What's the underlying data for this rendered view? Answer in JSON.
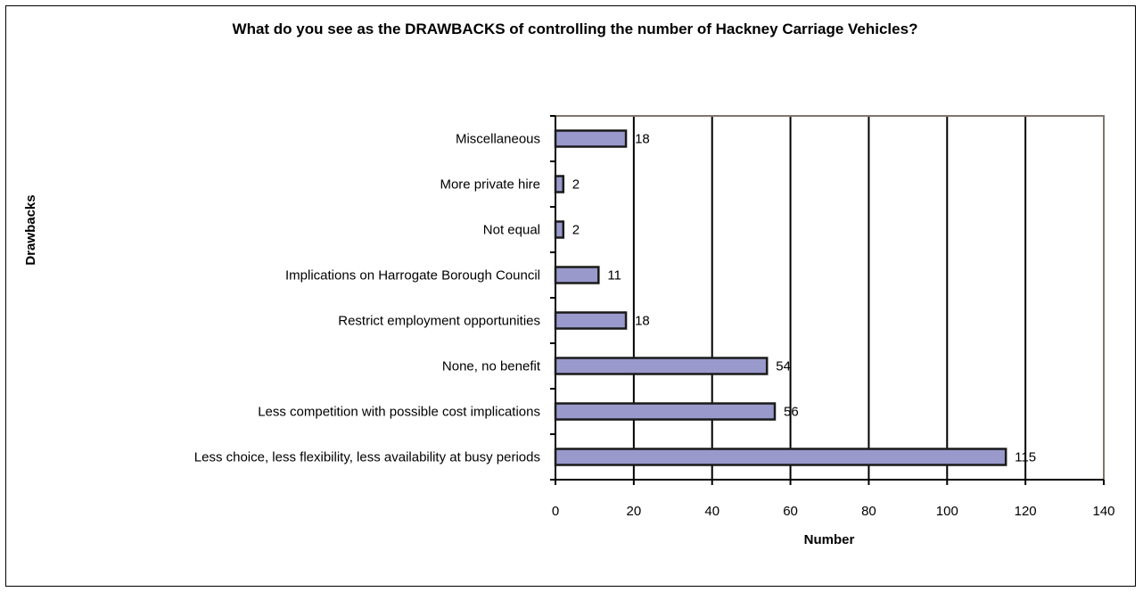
{
  "chart_data": {
    "type": "bar",
    "orientation": "horizontal",
    "title": "What do you see as the DRAWBACKS of controlling the number of Hackney Carriage Vehicles?",
    "xlabel": "Number",
    "ylabel": "Drawbacks",
    "xlim": [
      0,
      140
    ],
    "x_ticks": [
      "0",
      "20",
      "40",
      "60",
      "80",
      "100",
      "120",
      "140"
    ],
    "grid": true,
    "legend": "none",
    "categories": [
      "Miscellaneous",
      "More private hire",
      "Not equal",
      "Implications on Harrogate Borough Council",
      "Restrict employment opportunities",
      "None, no benefit",
      "Less competition with possible cost implications",
      "Less choice, less flexibility, less availability at busy periods"
    ],
    "values": [
      18,
      2,
      2,
      11,
      18,
      54,
      56,
      115
    ],
    "data_labels": [
      "18",
      "2",
      "2",
      "11",
      "18",
      "54",
      "56",
      "115"
    ],
    "colors": {
      "bar_fill": "#9999cc",
      "bar_stroke": "#1a1a1a",
      "plot_border": "#80756b",
      "gridline": "#000000"
    }
  }
}
